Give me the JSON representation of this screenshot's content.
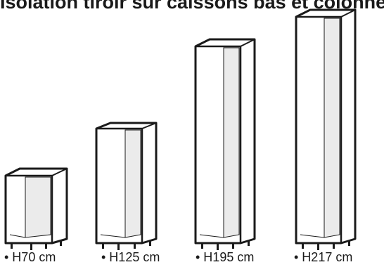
{
  "title": "Isolation tiroir sur caissons bas et colonnes",
  "cabinets": [
    {
      "label": "• H70 cm"
    },
    {
      "label": "• H125 cm"
    },
    {
      "label": "• H195 cm"
    },
    {
      "label": "• H217 cm"
    }
  ],
  "colors": {
    "outline": "#1a1a1a",
    "interior": "#ebebeb",
    "background": "#ffffff"
  }
}
